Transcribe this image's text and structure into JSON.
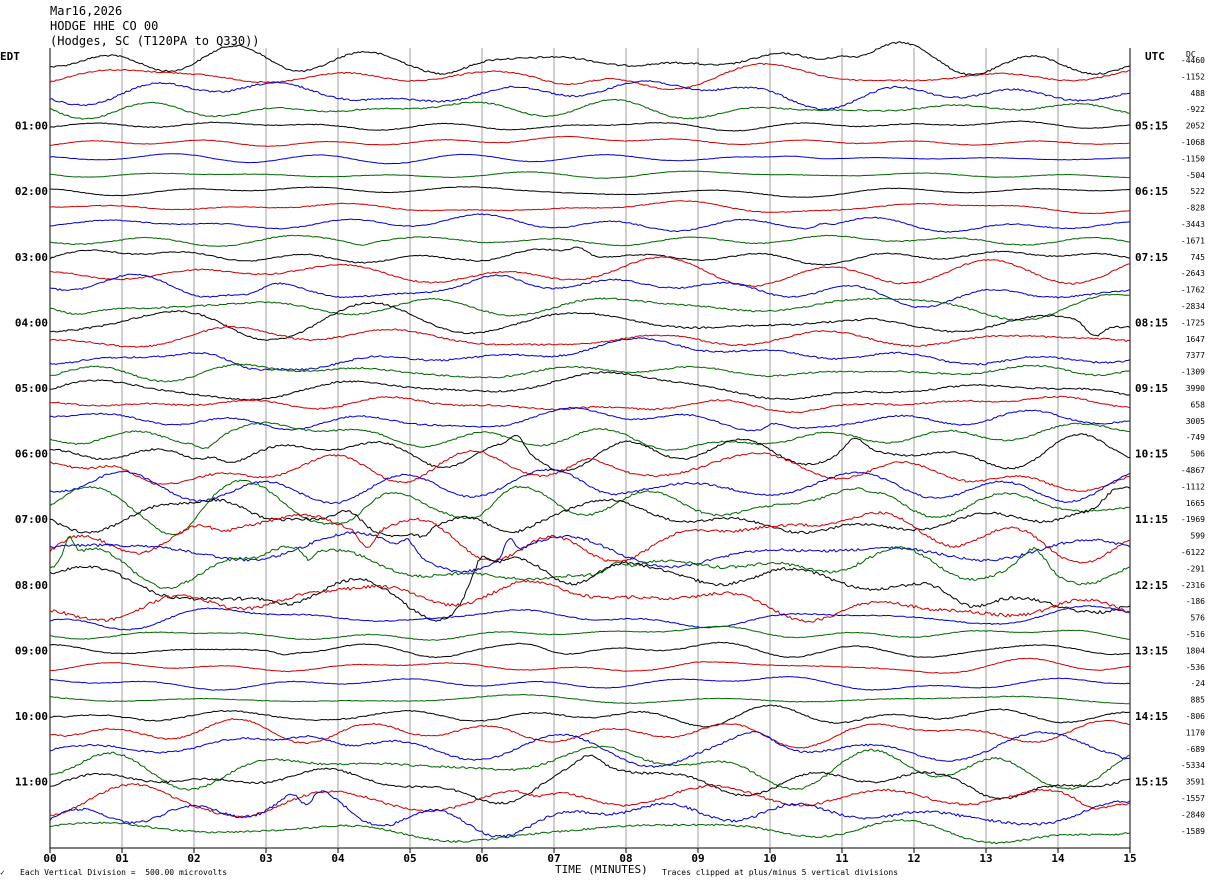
{
  "header": {
    "date": "Mar16,2026",
    "station": "HODGE HHE CO 00",
    "location": "(Hodges, SC (T120PA to Q330))"
  },
  "labels": {
    "left_tz": "EDT",
    "right_tz": "UTC",
    "dc": "DC",
    "xlabel": "TIME (MINUTES)",
    "scale_note": "Each Vertical Division =  500.00 microvolts",
    "clip_note": "Traces clipped at plus/minus 5 vertical divisions"
  },
  "chart_data": {
    "type": "line",
    "title": "HODGE HHE CO 00",
    "xlabel": "TIME (MINUTES)",
    "ylabel": "",
    "xlim": [
      0,
      15
    ],
    "x_ticks": [
      "00",
      "01",
      "02",
      "03",
      "04",
      "05",
      "06",
      "07",
      "08",
      "09",
      "10",
      "11",
      "12",
      "13",
      "14",
      "15"
    ],
    "grid": true,
    "trace_colors": [
      "#000000",
      "#cc0000",
      "#0000cc",
      "#006600"
    ],
    "trace_count": 48,
    "left_hour_labels": [
      "01:00",
      "02:00",
      "03:00",
      "04:00",
      "05:00",
      "06:00",
      "07:00",
      "08:00",
      "09:00",
      "10:00",
      "11:00"
    ],
    "right_hour_labels": [
      "05:15",
      "06:15",
      "07:15",
      "08:15",
      "09:15",
      "10:15",
      "11:15",
      "12:15",
      "13:15",
      "14:15",
      "15:15"
    ],
    "hour_label_rows": [
      4,
      8,
      12,
      16,
      20,
      24,
      28,
      32,
      36,
      40,
      44
    ],
    "dc_offsets": [
      "-4460",
      "-1152",
      "488",
      "-922",
      "2052",
      "-1068",
      "-1150",
      "-504",
      "522",
      "-828",
      "-3443",
      "-1671",
      "745",
      "-2643",
      "-1762",
      "-2834",
      "-1725",
      "1647",
      "7377",
      "-1309",
      "3990",
      "658",
      "3005",
      "-749",
      "506",
      "-4867",
      "-1112",
      "1665",
      "-1969",
      "599",
      "-6122",
      "-291",
      "-2316",
      "-186",
      "576",
      "-516",
      "1804",
      "-536",
      "-24",
      "885",
      "-806",
      "1170",
      "-689",
      "-5334",
      "3591",
      "-1557",
      "-2840",
      "-1589"
    ],
    "row_activity": [
      1.6,
      1.2,
      1.6,
      1.2,
      0.7,
      0.5,
      0.4,
      0.4,
      0.5,
      0.7,
      0.9,
      0.9,
      1.1,
      1.3,
      1.3,
      1.4,
      1.5,
      1.5,
      1.6,
      1.4,
      1.5,
      1.4,
      1.3,
      1.4,
      1.6,
      1.9,
      1.7,
      1.9,
      2.2,
      2.5,
      2.4,
      2.6,
      2.7,
      2.8,
      1.0,
      0.7,
      0.8,
      0.6,
      0.6,
      0.6,
      1.1,
      1.3,
      1.6,
      1.8,
      1.9,
      2.1,
      2.3,
      1.6
    ]
  }
}
